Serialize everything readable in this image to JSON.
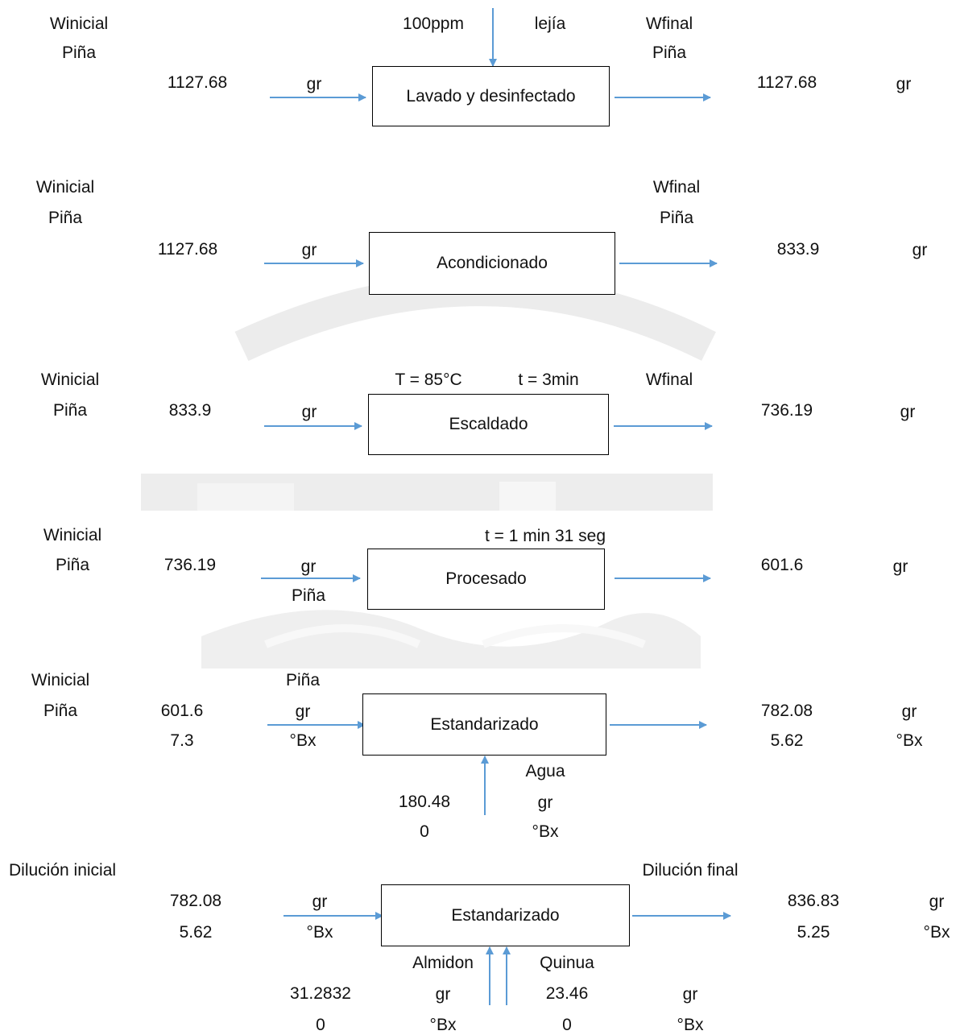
{
  "block1": {
    "in_label": "Winicial",
    "in_material": "Piña",
    "in_value": "1127.68",
    "in_unit": "gr",
    "top_left": "100ppm",
    "top_right": "lejía",
    "process": "Lavado y desinfectado",
    "out_label": "Wfinal",
    "out_material": "Piña",
    "out_value": "1127.68",
    "out_unit": "gr"
  },
  "block2": {
    "in_label": "Winicial",
    "in_material": "Piña",
    "in_value": "1127.68",
    "in_unit": "gr",
    "process": "Acondicionado",
    "out_label": "Wfinal",
    "out_material": "Piña",
    "out_value": "833.9",
    "out_unit": "gr"
  },
  "block3": {
    "in_label": "Winicial",
    "in_material": "Piña",
    "in_value": "833.9",
    "in_unit": "gr",
    "temp": "T = 85°C",
    "time": "t = 3min",
    "process": "Escaldado",
    "out_label": "Wfinal",
    "out_value": "736.19",
    "out_unit": "gr"
  },
  "block4": {
    "in_label": "Winicial",
    "in_material": "Piña",
    "in_value": "736.19",
    "in_unit": "gr",
    "in_sub": "Piña",
    "time": "t = 1 min 31 seg",
    "process": "Procesado",
    "out_value": "601.6",
    "out_unit": "gr"
  },
  "block5": {
    "in_label": "Winicial",
    "in_material": "Piña",
    "in_value": "601.6",
    "in_brix": "7.3",
    "in_top": "Piña",
    "in_unit": "gr",
    "in_brix_unit": "°Bx",
    "process": "Estandarizado",
    "out_value": "782.08",
    "out_brix": "5.62",
    "out_unit": "gr",
    "out_brix_unit": "°Bx",
    "water_label": "Agua",
    "water_value": "180.48",
    "water_brix": "0",
    "water_unit": "gr",
    "water_brix_unit": "°Bx"
  },
  "block6": {
    "in_label": "Dilución inicial",
    "in_value": "782.08",
    "in_brix": "5.62",
    "in_unit": "gr",
    "in_brix_unit": "°Bx",
    "process": "Estandarizado",
    "out_label": "Dilución final",
    "out_value": "836.83",
    "out_brix": "5.25",
    "out_unit": "gr",
    "out_brix_unit": "°Bx",
    "almidon_label": "Almidon",
    "almidon_value": "31.2832",
    "almidon_brix": "0",
    "almidon_unit": "gr",
    "almidon_brix_unit": "°Bx",
    "quinua_label": "Quinua",
    "quinua_value": "23.46",
    "quinua_brix": "0",
    "quinua_unit": "gr",
    "quinua_brix_unit": "°Bx"
  },
  "colors": {
    "arrow": "#5b9bd5",
    "box_border": "#000000",
    "watermark": "#ededed"
  }
}
